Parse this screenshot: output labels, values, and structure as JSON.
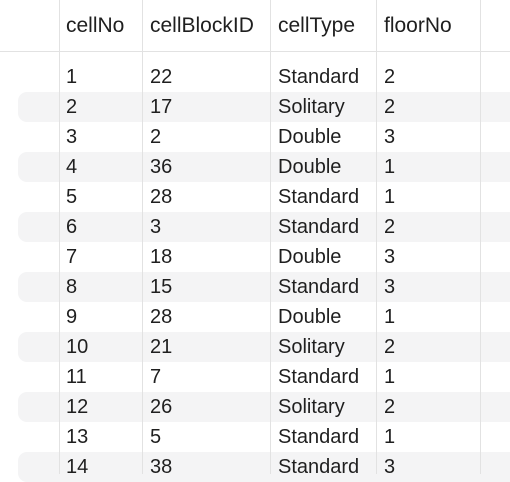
{
  "table": {
    "columns": [
      "cellNo",
      "cellBlockID",
      "cellType",
      "floorNo"
    ],
    "rows": [
      [
        "1",
        "22",
        "Standard",
        "2"
      ],
      [
        "2",
        "17",
        "Solitary",
        "2"
      ],
      [
        "3",
        "2",
        "Double",
        "3"
      ],
      [
        "4",
        "36",
        "Double",
        "1"
      ],
      [
        "5",
        "28",
        "Standard",
        "1"
      ],
      [
        "6",
        "3",
        "Standard",
        "2"
      ],
      [
        "7",
        "18",
        "Double",
        "3"
      ],
      [
        "8",
        "15",
        "Standard",
        "3"
      ],
      [
        "9",
        "28",
        "Double",
        "1"
      ],
      [
        "10",
        "21",
        "Solitary",
        "2"
      ],
      [
        "11",
        "7",
        "Standard",
        "1"
      ],
      [
        "12",
        "26",
        "Solitary",
        "2"
      ],
      [
        "13",
        "5",
        "Standard",
        "1"
      ],
      [
        "14",
        "38",
        "Standard",
        "3"
      ]
    ]
  }
}
